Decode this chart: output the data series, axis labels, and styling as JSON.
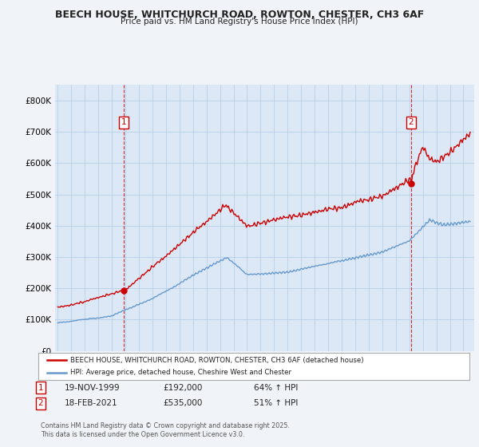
{
  "title1": "BEECH HOUSE, WHITCHURCH ROAD, ROWTON, CHESTER, CH3 6AF",
  "title2": "Price paid vs. HM Land Registry's House Price Index (HPI)",
  "ylim": [
    0,
    850000
  ],
  "yticks": [
    0,
    100000,
    200000,
    300000,
    400000,
    500000,
    600000,
    700000,
    800000
  ],
  "ytick_labels": [
    "£0",
    "£100K",
    "£200K",
    "£300K",
    "£400K",
    "£500K",
    "£600K",
    "£700K",
    "£800K"
  ],
  "sale1_date": 1999.88,
  "sale1_price": 192000,
  "sale1_label": "1",
  "sale2_date": 2021.12,
  "sale2_price": 535000,
  "sale2_label": "2",
  "legend_line1": "BEECH HOUSE, WHITCHURCH ROAD, ROWTON, CHESTER, CH3 6AF (detached house)",
  "legend_line2": "HPI: Average price, detached house, Cheshire West and Chester",
  "footer": "Contains HM Land Registry data © Crown copyright and database right 2025.\nThis data is licensed under the Open Government Licence v3.0.",
  "red_color": "#cc0000",
  "blue_color": "#6699cc",
  "background_color": "#f0f4f8",
  "plot_bg_color": "#dce8f5",
  "grid_color": "#b8cfe8",
  "label1_date": "19-NOV-1999",
  "label1_price": "£192,000",
  "label1_hpi": "64% ↑ HPI",
  "label2_date": "18-FEB-2021",
  "label2_price": "£535,000",
  "label2_hpi": "51% ↑ HPI"
}
